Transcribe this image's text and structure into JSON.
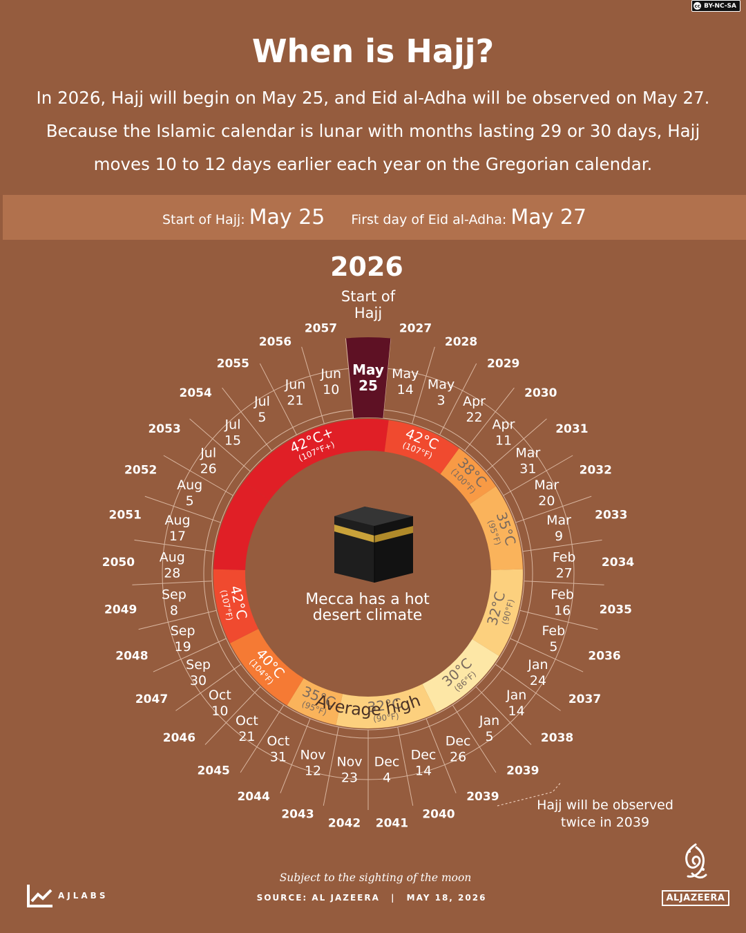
{
  "license": "BY-NC-SA",
  "title": "When is Hajj?",
  "intro": "In 2026, Hajj will begin on May 25, and Eid al-Adha will be observed on May 27. Because the Islamic calendar is lunar with months lasting 29 or 30 days, Hajj moves 10 to 12 days earlier each year on the Gregorian calendar.",
  "highlight": {
    "start_label": "Start of Hajj:",
    "start_value": "May 25",
    "eid_label": "First day of Eid al-Adha:",
    "eid_value": "May 27"
  },
  "year": "2026",
  "start_marker": [
    "Start of",
    "Hajj"
  ],
  "center_text": "Mecca has a hot desert climate",
  "ring_label": "Average high",
  "twice_note": "Hajj will be observed twice in 2039",
  "subject_note": "Subject to the sighting of the moon",
  "source": {
    "label": "SOURCE:",
    "name": "AL JAZEERA",
    "date": "MAY 18, 2026"
  },
  "branding": {
    "ajlabs": "AJLABS",
    "aljazeera": "ALJAZEERA"
  },
  "colors": {
    "background": "#955c3e",
    "band": "#b1714d",
    "current_segment": "#5e1124",
    "ring_42_plus": "#e01f26",
    "ring_42": "#f04a2f",
    "ring_40": "#f57a34",
    "ring_38": "#f89a45",
    "ring_35": "#fab35b",
    "ring_32": "#fcd07e",
    "ring_30": "#fde7a6"
  },
  "chart_data": {
    "type": "radial_timeline",
    "segments": [
      {
        "year": "2027",
        "date": [
          "May",
          "14"
        ]
      },
      {
        "year": "2028",
        "date": [
          "May",
          "3"
        ]
      },
      {
        "year": "2029",
        "date": [
          "Apr",
          "22"
        ]
      },
      {
        "year": "2030",
        "date": [
          "Apr",
          "11"
        ]
      },
      {
        "year": "2031",
        "date": [
          "Mar",
          "31"
        ]
      },
      {
        "year": "2032",
        "date": [
          "Mar",
          "20"
        ]
      },
      {
        "year": "2033",
        "date": [
          "Mar",
          "9"
        ]
      },
      {
        "year": "2034",
        "date": [
          "Feb",
          "27"
        ]
      },
      {
        "year": "2035",
        "date": [
          "Feb",
          "16"
        ]
      },
      {
        "year": "2036",
        "date": [
          "Feb",
          "5"
        ]
      },
      {
        "year": "2037",
        "date": [
          "Jan",
          "24"
        ]
      },
      {
        "year": "2038",
        "date": [
          "Jan",
          "14"
        ]
      },
      {
        "year": "2039",
        "date": [
          "Jan",
          "5"
        ]
      },
      {
        "year": "2039",
        "date": [
          "Dec",
          "26"
        ]
      },
      {
        "year": "2040",
        "date": [
          "Dec",
          "14"
        ]
      },
      {
        "year": "2041",
        "date": [
          "Dec",
          "4"
        ]
      },
      {
        "year": "2042",
        "date": [
          "Nov",
          "23"
        ]
      },
      {
        "year": "2043",
        "date": [
          "Nov",
          "12"
        ]
      },
      {
        "year": "2044",
        "date": [
          "Oct",
          "31"
        ]
      },
      {
        "year": "2045",
        "date": [
          "Oct",
          "21"
        ]
      },
      {
        "year": "2046",
        "date": [
          "Oct",
          "10"
        ]
      },
      {
        "year": "2047",
        "date": [
          "Sep",
          "30"
        ]
      },
      {
        "year": "2048",
        "date": [
          "Sep",
          "19"
        ]
      },
      {
        "year": "2049",
        "date": [
          "Sep",
          "8"
        ]
      },
      {
        "year": "2050",
        "date": [
          "Aug",
          "28"
        ]
      },
      {
        "year": "2051",
        "date": [
          "Aug",
          "17"
        ]
      },
      {
        "year": "2052",
        "date": [
          "Aug",
          "5"
        ]
      },
      {
        "year": "2053",
        "date": [
          "Jul",
          "26"
        ]
      },
      {
        "year": "2054",
        "date": [
          "Jul",
          "15"
        ]
      },
      {
        "year": "2055",
        "date": [
          "Jul",
          "5"
        ]
      },
      {
        "year": "2056",
        "date": [
          "Jun",
          "21"
        ]
      },
      {
        "year": "2057",
        "date": [
          "Jun",
          "10"
        ]
      },
      {
        "year": "2026",
        "date": [
          "May",
          "25"
        ],
        "current": true
      }
    ],
    "temperature_ring": [
      {
        "label": [
          "42°C+",
          "(107°F+)"
        ],
        "color_key": "ring_42_plus",
        "from_segment": 28.6,
        "to_segment": 34.2
      },
      {
        "label": [
          "42°C",
          "(107°F)"
        ],
        "color_key": "ring_42",
        "from_segment": 1.2,
        "to_segment": 3.8
      },
      {
        "label": [
          "38°C",
          "(100°F)"
        ],
        "color_key": "ring_38",
        "from_segment": 3.8,
        "to_segment": 5.6
      },
      {
        "label": [
          "35°C",
          "(95°F)"
        ],
        "color_key": "ring_35",
        "from_segment": 5.6,
        "to_segment": 8.6
      },
      {
        "label": [
          "32°C",
          "(90°F)"
        ],
        "color_key": "ring_32",
        "from_segment": 8.6,
        "to_segment": 11.7
      },
      {
        "label": [
          "30°C",
          "(86°F)"
        ],
        "color_key": "ring_30",
        "from_segment": 11.7,
        "to_segment": 14.6
      },
      {
        "label": [
          "32°C",
          "(90°F)"
        ],
        "color_key": "ring_32",
        "from_segment": 14.6,
        "to_segment": 18.1
      },
      {
        "label": [
          "35°C",
          "(95°F)"
        ],
        "color_key": "ring_35",
        "from_segment": 18.1,
        "to_segment": 19.9
      },
      {
        "label": [
          "40°C",
          "(104°F)"
        ],
        "color_key": "ring_40",
        "from_segment": 19.9,
        "to_segment": 22.8
      },
      {
        "label": [
          "42°C",
          "(107°F)"
        ],
        "color_key": "ring_42",
        "from_segment": 22.8,
        "to_segment": 25.4
      },
      {
        "label": [],
        "color_key": "ring_42_plus",
        "from_segment": 25.4,
        "to_segment": 28.6
      }
    ]
  }
}
